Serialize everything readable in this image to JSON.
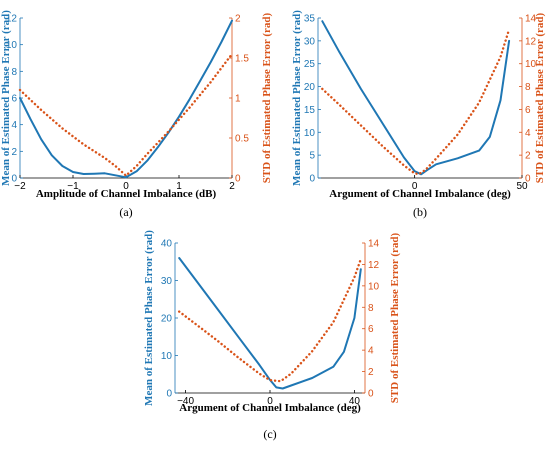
{
  "colors": {
    "left": "#1f77b4",
    "right": "#d95319",
    "axis": "#000000"
  },
  "chart_data": [
    {
      "type": "line",
      "panel": "a",
      "panel_label": "(a)",
      "xlabel": "Amplitude of Channel Imbalance (dB)",
      "ylabel_left": "Mean of Estimated Phase Error (rad)",
      "ylabel_right": "STD of Estimated Phase Error (rad)",
      "xlim": [
        -2,
        2
      ],
      "ylim_left": [
        0,
        12
      ],
      "ylim_right": [
        0,
        2
      ],
      "xticks": [
        -2,
        -1,
        0,
        1,
        2
      ],
      "yticks_left": [
        0,
        2,
        4,
        6,
        8,
        10,
        12
      ],
      "yticks_right": [
        0,
        0.5,
        1,
        1.5,
        2
      ],
      "x_tick_labels": [
        "−2",
        "−1",
        "0",
        "1",
        "2"
      ],
      "yleft_tick_labels": [
        "0",
        "2",
        "4",
        "6",
        "8",
        "10",
        "12"
      ],
      "yright_tick_labels": [
        "0",
        "0.5",
        "1",
        "1.5",
        "2"
      ],
      "series": [
        {
          "axis": "left",
          "style": "solid",
          "x": [
            -2,
            -1.8,
            -1.6,
            -1.4,
            -1.2,
            -1.0,
            -0.8,
            -0.6,
            -0.4,
            -0.2,
            0,
            0.2,
            0.4,
            0.6,
            0.8,
            1.0,
            1.2,
            1.4,
            1.6,
            1.8,
            2.0
          ],
          "y": [
            6.0,
            4.4,
            2.9,
            1.7,
            0.9,
            0.45,
            0.3,
            0.32,
            0.35,
            0.2,
            0.05,
            0.5,
            1.3,
            2.3,
            3.4,
            4.6,
            5.9,
            7.3,
            8.7,
            10.2,
            11.8
          ]
        },
        {
          "axis": "right",
          "style": "dotted",
          "x": [
            -2,
            -1.6,
            -1.2,
            -0.8,
            -0.4,
            -0.2,
            0,
            0.2,
            0.4,
            0.8,
            1.2,
            1.6,
            2.0
          ],
          "y": [
            1.1,
            0.85,
            0.62,
            0.42,
            0.25,
            0.15,
            0.03,
            0.15,
            0.3,
            0.58,
            0.88,
            1.2,
            1.55
          ]
        }
      ]
    },
    {
      "type": "line",
      "panel": "b",
      "panel_label": "(b)",
      "xlabel": "Argument of Channel Imbalance (deg)",
      "ylabel_left": "Mean of Estimated Phase Error (rad)",
      "ylabel_right": "STD of Estimated Phase Error (rad)",
      "xlim": [
        -45,
        50
      ],
      "ylim_left": [
        0,
        35
      ],
      "ylim_right": [
        0,
        14
      ],
      "xticks": [
        0,
        50
      ],
      "yticks_left": [
        0,
        5,
        10,
        15,
        20,
        25,
        30,
        35
      ],
      "yticks_right": [
        0,
        2,
        4,
        6,
        8,
        10,
        12,
        14
      ],
      "x_tick_labels": [
        "0",
        "50"
      ],
      "yleft_tick_labels": [
        "0",
        "5",
        "10",
        "15",
        "20",
        "25",
        "30",
        "35"
      ],
      "yright_tick_labels": [
        "0",
        "2",
        "4",
        "6",
        "8",
        "10",
        "12",
        "14"
      ],
      "series": [
        {
          "axis": "left",
          "style": "solid",
          "x": [
            -43,
            -35,
            -25,
            -15,
            -5,
            0,
            3,
            6,
            10,
            20,
            30,
            35,
            40,
            44
          ],
          "y": [
            34.3,
            27.5,
            19.5,
            12,
            4.5,
            1.5,
            0.8,
            1.8,
            3.0,
            4.3,
            6.0,
            9.0,
            17.0,
            30.0
          ]
        },
        {
          "axis": "right",
          "style": "dotted",
          "x": [
            -43,
            -35,
            -25,
            -15,
            -5,
            0,
            2,
            5,
            10,
            20,
            30,
            40,
            44
          ],
          "y": [
            7.8,
            6.4,
            4.6,
            2.8,
            1.1,
            0.4,
            0.35,
            0.7,
            1.7,
            3.8,
            6.6,
            10.6,
            13.0
          ]
        }
      ]
    },
    {
      "type": "line",
      "panel": "c",
      "panel_label": "(c)",
      "xlabel": "Argument of Channel Imbalance (deg)",
      "ylabel_left": "Mean of Estimated Phase Error (rad)",
      "ylabel_right": "STD of Estimated Phase Error (rad)",
      "xlim": [
        -45,
        45
      ],
      "ylim_left": [
        0,
        40
      ],
      "ylim_right": [
        0,
        14
      ],
      "xticks": [
        -40,
        0,
        40
      ],
      "yticks_left": [
        0,
        10,
        20,
        30,
        40
      ],
      "yticks_right": [
        0,
        2,
        4,
        6,
        8,
        10,
        12,
        14
      ],
      "x_tick_labels": [
        "−40",
        "0",
        "40"
      ],
      "yleft_tick_labels": [
        "0",
        "10",
        "20",
        "30",
        "40"
      ],
      "yright_tick_labels": [
        "0",
        "2",
        "4",
        "6",
        "8",
        "10",
        "12",
        "14"
      ],
      "series": [
        {
          "axis": "left",
          "style": "solid",
          "x": [
            -43,
            -35,
            -25,
            -15,
            -5,
            0,
            3,
            6,
            10,
            20,
            30,
            35,
            40,
            43
          ],
          "y": [
            36,
            30,
            22.5,
            15,
            7.5,
            3.5,
            1.5,
            1.2,
            2.0,
            4.0,
            7.0,
            11.0,
            20.0,
            33.0
          ]
        },
        {
          "axis": "right",
          "style": "dotted",
          "x": [
            -43,
            -35,
            -25,
            -15,
            -5,
            0,
            5,
            10,
            20,
            30,
            40,
            43
          ],
          "y": [
            7.6,
            6.4,
            4.9,
            3.3,
            1.8,
            1.2,
            1.1,
            1.8,
            3.9,
            6.6,
            10.8,
            12.5
          ]
        }
      ]
    }
  ]
}
